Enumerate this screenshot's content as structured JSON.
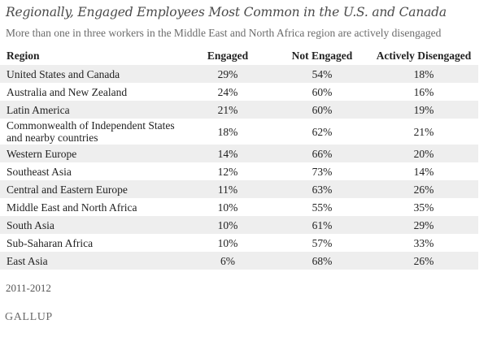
{
  "title": "Regionally, Engaged Employees Most Common in the U.S. and Canada",
  "subtitle": "More than one in three workers in the Middle East and North Africa region are actively disengaged",
  "source_note": "2011-2012",
  "logo_text": "GALLUP",
  "colors": {
    "band": "#eeeeee",
    "title": "#4a4a4a",
    "subtitle": "#6b6b6b"
  },
  "chart_data": {
    "type": "table",
    "title": "Regionally, Engaged Employees Most Common in the U.S. and Canada",
    "subtitle": "More than one in three workers in the Middle East and North Africa region are actively disengaged",
    "columns": [
      "Region",
      "Engaged",
      "Not Engaged",
      "Actively Disengaged"
    ],
    "rows": [
      [
        "United States and Canada",
        "29%",
        "54%",
        "18%"
      ],
      [
        "Australia and New Zealand",
        "24%",
        "60%",
        "16%"
      ],
      [
        "Latin America",
        "21%",
        "60%",
        "19%"
      ],
      [
        "Commonwealth of Independent States and nearby countries",
        "18%",
        "62%",
        "21%"
      ],
      [
        "Western Europe",
        "14%",
        "66%",
        "20%"
      ],
      [
        "Southeast Asia",
        "12%",
        "73%",
        "14%"
      ],
      [
        "Central and Eastern Europe",
        "11%",
        "63%",
        "26%"
      ],
      [
        "Middle East and North Africa",
        "10%",
        "55%",
        "35%"
      ],
      [
        "South Asia",
        "10%",
        "61%",
        "29%"
      ],
      [
        "Sub-Saharan Africa",
        "10%",
        "57%",
        "33%"
      ],
      [
        "East Asia",
        "6%",
        "68%",
        "26%"
      ]
    ]
  }
}
